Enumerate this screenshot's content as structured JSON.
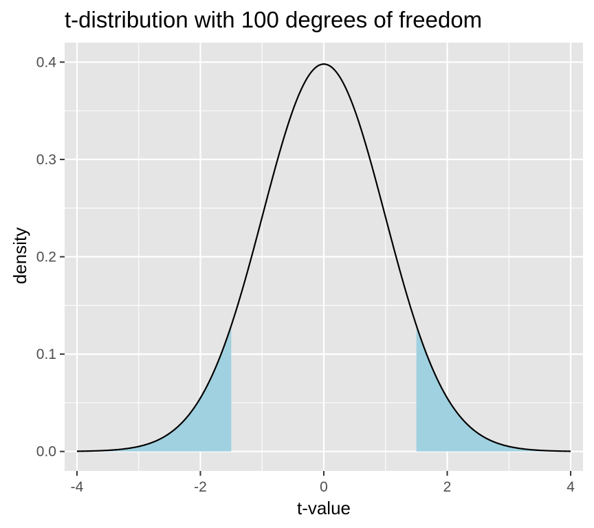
{
  "chart_data": {
    "type": "area",
    "title": "t-distribution with 100 degrees of freedom",
    "xlabel": "t-value",
    "ylabel": "density",
    "xlim": [
      -4.2,
      4.2
    ],
    "ylim": [
      -0.02,
      0.42
    ],
    "x_ticks": [
      -4,
      -2,
      0,
      2,
      4
    ],
    "x_tick_labels": [
      "-4",
      "-2",
      "0",
      "2",
      "4"
    ],
    "y_ticks": [
      0.0,
      0.1,
      0.2,
      0.3,
      0.4
    ],
    "y_tick_labels": [
      "0.0",
      "0.1",
      "0.2",
      "0.3",
      "0.4"
    ],
    "degrees_of_freedom": 100,
    "x_range": [
      -4,
      4
    ],
    "shaded_regions": [
      {
        "from": -4,
        "to": -1.5
      },
      {
        "from": 1.5,
        "to": 4
      }
    ],
    "grid": true,
    "colors": {
      "panel": "#e5e5e5",
      "grid": "#ffffff",
      "curve": "#000000",
      "shade": "#a0d1e0"
    }
  }
}
